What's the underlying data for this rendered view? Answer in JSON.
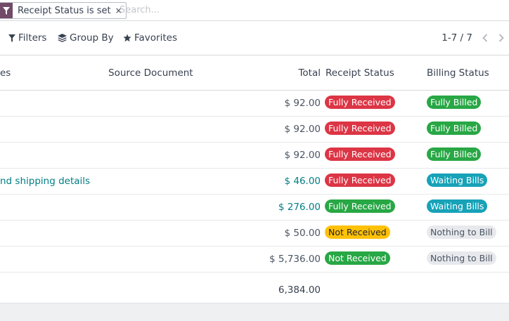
{
  "search": {
    "facet_label": "Receipt Status is set",
    "facet_remove": "×",
    "placeholder": "Search..."
  },
  "controls": {
    "filters": "Filters",
    "group_by": "Group By",
    "favorites": "Favorites",
    "pager": "1-7 / 7"
  },
  "table": {
    "headers": {
      "first_partial": "es",
      "source_document": "Source Document",
      "total": "Total",
      "receipt_status": "Receipt Status",
      "billing_status": "Billing Status"
    },
    "rows": [
      {
        "source": "",
        "total": "$ 92.00",
        "receipt": "Fully Received",
        "billing": "Fully Billed"
      },
      {
        "source": "",
        "total": "$ 92.00",
        "receipt": "Fully Received",
        "billing": "Fully Billed"
      },
      {
        "source": "",
        "total": "$ 92.00",
        "receipt": "Fully Received",
        "billing": "Fully Billed"
      },
      {
        "source": "nd shipping details",
        "total": "$ 46.00",
        "receipt": "Fully Received",
        "billing": "Waiting Bills"
      },
      {
        "source": "",
        "total": "$ 276.00",
        "receipt": "Fully Received",
        "billing": "Waiting Bills"
      },
      {
        "source": "",
        "total": "$ 50.00",
        "receipt": "Not Received",
        "billing": "Nothing to Bill"
      },
      {
        "source": "",
        "total": "$ 5,736.00",
        "receipt": "Not Received",
        "billing": "Nothing to Bill"
      }
    ],
    "grand_total": "6,384.00"
  },
  "colors": {
    "brand": "#714b67",
    "link": "#017e84",
    "danger": "#dc3545",
    "success": "#28a745",
    "info": "#17a2b8",
    "warning": "#ffc107",
    "muted": "#e7e9ed"
  }
}
